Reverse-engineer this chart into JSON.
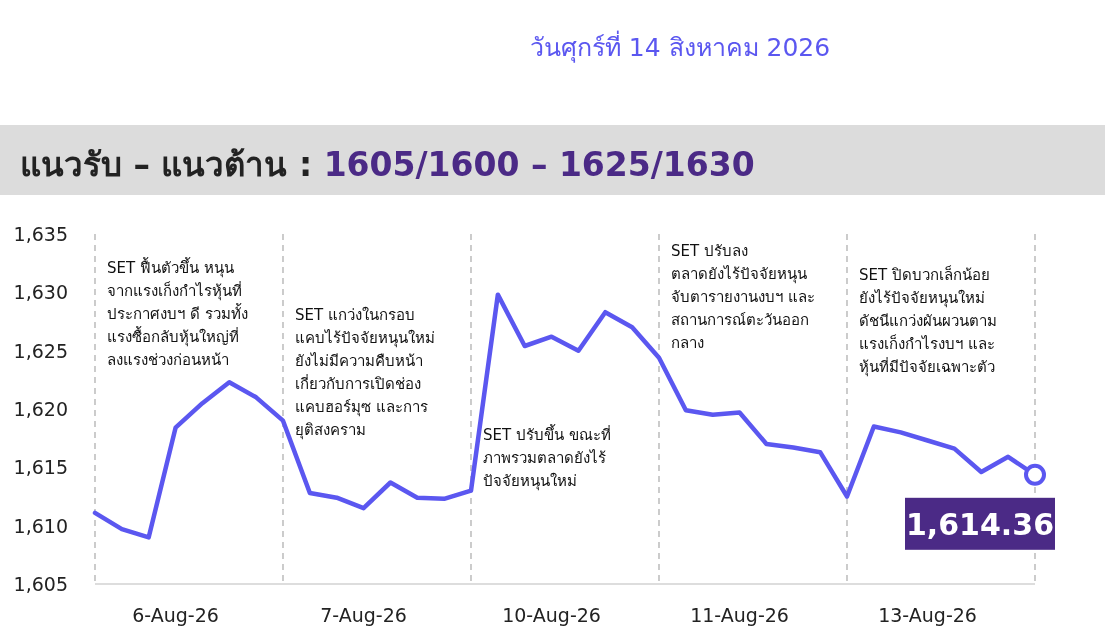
{
  "chart_data": {
    "type": "line",
    "title": "แนวรับ – แนวต้าน : 1605/1600 – 1625/1630",
    "subtitle": "วันศุกร์ที่ 14 สิงหาคม 2026",
    "categories": [
      null,
      null,
      null,
      "6-Aug-26",
      null,
      null,
      null,
      null,
      null,
      null,
      "7-Aug-26",
      null,
      null,
      null,
      null,
      null,
      null,
      "10-Aug-26",
      null,
      null,
      null,
      null,
      null,
      null,
      "11-Aug-26",
      null,
      null,
      null,
      null,
      null,
      null,
      "13-Aug-26",
      null,
      null,
      null,
      null
    ],
    "series": [
      {
        "color": "#5b57f0",
        "values": [
          1611.1,
          1609.7,
          1609.0,
          1618.4,
          1620.5,
          1622.3,
          1621.0,
          1619.0,
          1612.8,
          1612.4,
          1611.5,
          1613.7,
          1612.4,
          1612.3,
          1613.0,
          1629.8,
          1625.4,
          1626.2,
          1625.0,
          1628.3,
          1627.0,
          1624.4,
          1619.9,
          1619.5,
          1619.7,
          1617.0,
          1616.7,
          1616.3,
          1612.5,
          1618.5,
          1618.0,
          1617.3,
          1616.6,
          1614.6,
          1615.9,
          1614.36
        ],
        "value_labels": [
          null,
          null,
          null,
          null,
          null,
          null,
          null,
          null,
          null,
          null,
          null,
          null,
          null,
          null,
          null,
          null,
          null,
          null,
          null,
          null,
          null,
          null,
          null,
          null,
          null,
          null,
          null,
          null,
          null,
          null,
          null,
          null,
          null,
          null,
          null,
          "1,614.36"
        ]
      }
    ],
    "grid": "x",
    "ylim": [
      1605,
      1635
    ],
    "yticks": [
      {
        "value": 1605,
        "label": "1,605"
      },
      {
        "value": 1610,
        "label": "1,610"
      },
      {
        "value": 1615,
        "label": "1,615"
      },
      {
        "value": 1620,
        "label": "1,620"
      },
      {
        "value": 1625,
        "label": "1,625"
      },
      {
        "value": 1630,
        "label": "1,630"
      },
      {
        "value": 1635,
        "label": "1,635"
      }
    ],
    "annotations": [
      "SET ฟื้นตัวขึ้น หนุน\nจากแรงเก็งกำไรหุ้นที่\nประกาศงบฯ ดี รวมทั้ง\nแรงซื้อกลับหุ้นใหญ่ที่\nลงแรงช่วงก่อนหน้า",
      "SET แกว่งในกรอบ\nแคบไร้ปัจจัยหนุนใหม่\nยังไม่มีความคืบหน้า\nเกี่ยวกับการเปิดช่อง\nแคบฮอร์มุซ และการ\nยุติสงคราม",
      "SET ปรับขึ้น ขณะที่\nภาพรวมตลาดยังไร้\nปัจจัยหนุนใหม่",
      "SET ปรับลง\nตลาดยังไร้ปัจจัยหนุน\nจับตารายงานงบฯ และ\nสถานการณ์ตะวันออก\nกลาง",
      "SET ปิดบวกเล็กน้อย\nยังไร้ปัจจัยหนุนใหม่\nดัชนีแกว่งผันผวนตาม\nแรงเก็งกำไรงบฯ และ\nหุ้นที่มีปัจจัยเฉพาะตัว"
    ]
  }
}
